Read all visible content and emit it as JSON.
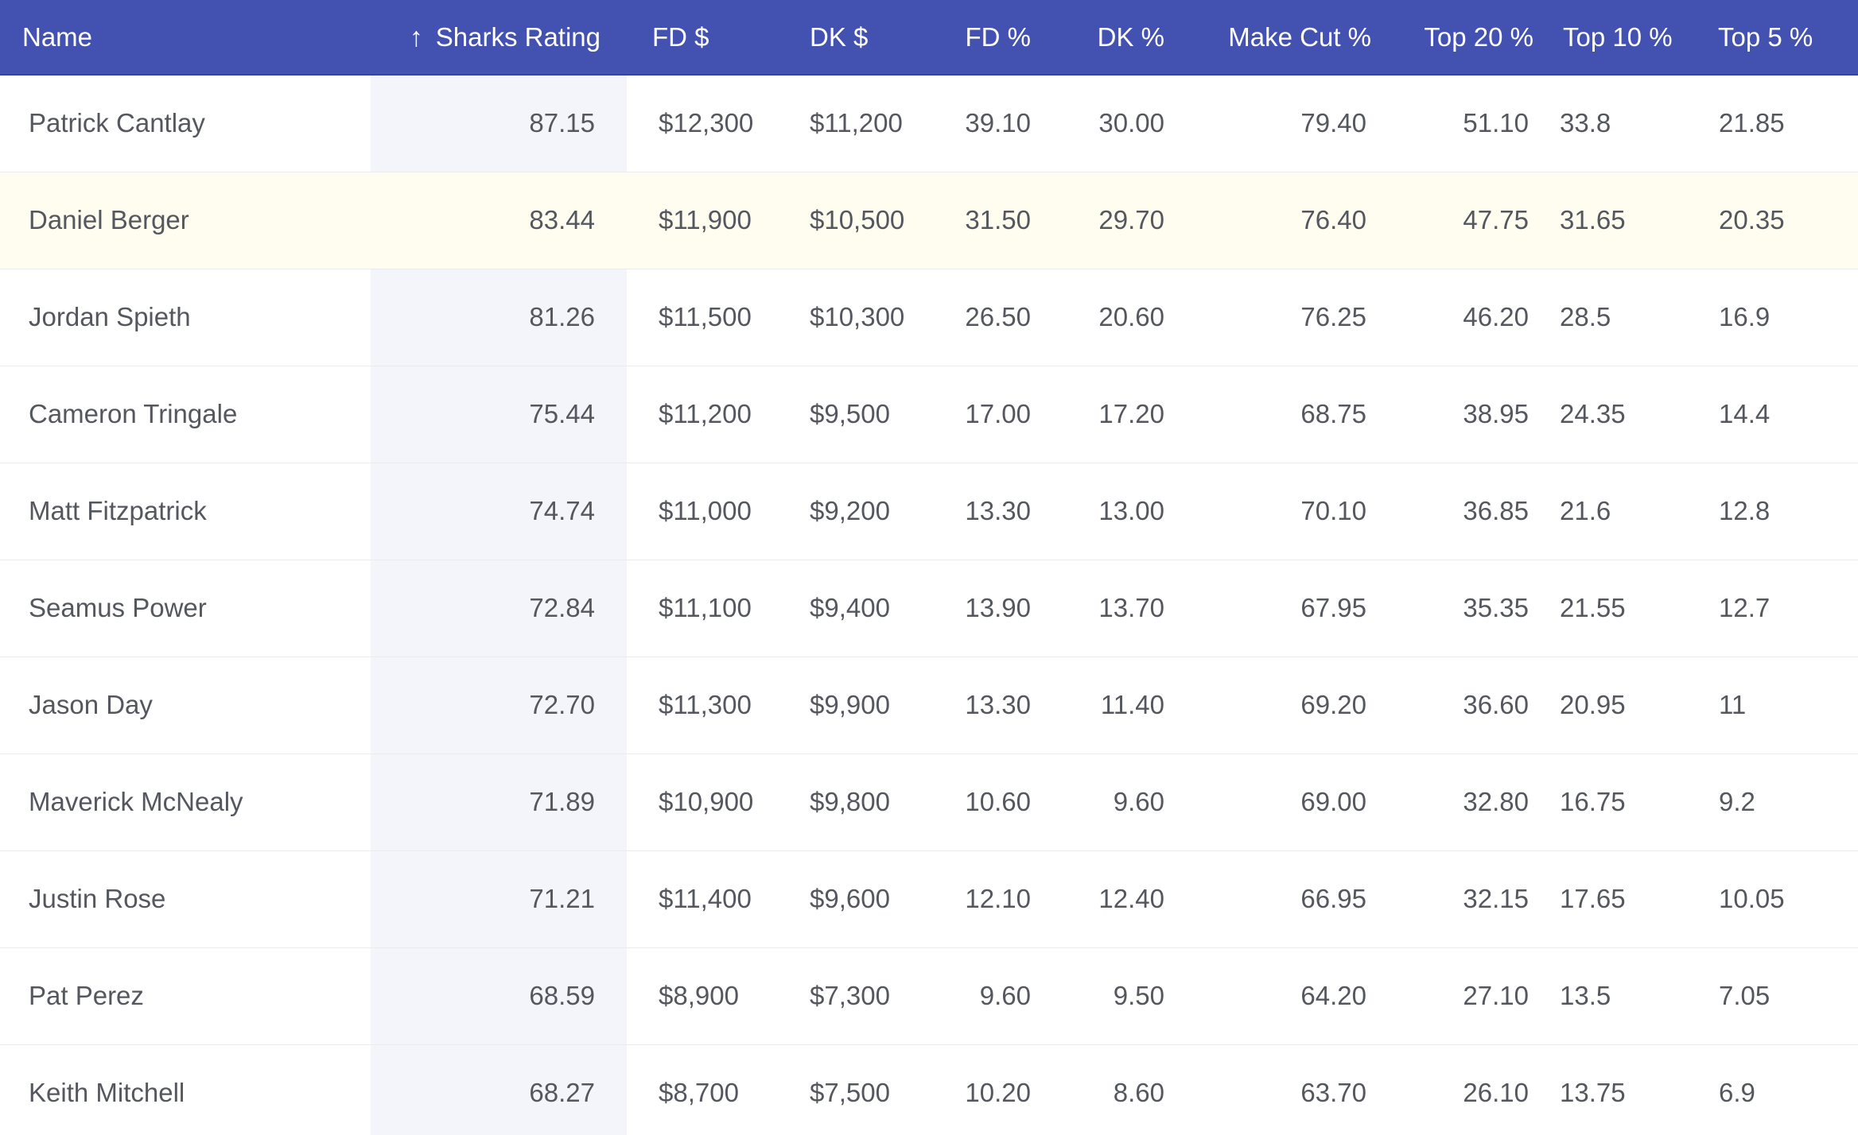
{
  "columns": [
    {
      "key": "name",
      "label": "Name"
    },
    {
      "key": "rating",
      "label": "Sharks Rating",
      "sort_icon": "↑"
    },
    {
      "key": "fd_salary",
      "label": "FD $"
    },
    {
      "key": "dk_salary",
      "label": "DK $"
    },
    {
      "key": "fd_pct",
      "label": "FD %"
    },
    {
      "key": "dk_pct",
      "label": "DK %"
    },
    {
      "key": "make_cut",
      "label": "Make Cut %"
    },
    {
      "key": "top20",
      "label": "Top 20 %"
    },
    {
      "key": "top10",
      "label": "Top 10 %"
    },
    {
      "key": "top5",
      "label": "Top 5 %"
    }
  ],
  "rows": [
    [
      "Patrick Cantlay",
      "87.15",
      "$12,300",
      "$11,200",
      "39.10",
      "30.00",
      "79.40",
      "51.10",
      "33.8",
      "21.85"
    ],
    [
      "Daniel Berger",
      "83.44",
      "$11,900",
      "$10,500",
      "31.50",
      "29.70",
      "76.40",
      "47.75",
      "31.65",
      "20.35"
    ],
    [
      "Jordan Spieth",
      "81.26",
      "$11,500",
      "$10,300",
      "26.50",
      "20.60",
      "76.25",
      "46.20",
      "28.5",
      "16.9"
    ],
    [
      "Cameron Tringale",
      "75.44",
      "$11,200",
      "$9,500",
      "17.00",
      "17.20",
      "68.75",
      "38.95",
      "24.35",
      "14.4"
    ],
    [
      "Matt Fitzpatrick",
      "74.74",
      "$11,000",
      "$9,200",
      "13.30",
      "13.00",
      "70.10",
      "36.85",
      "21.6",
      "12.8"
    ],
    [
      "Seamus Power",
      "72.84",
      "$11,100",
      "$9,400",
      "13.90",
      "13.70",
      "67.95",
      "35.35",
      "21.55",
      "12.7"
    ],
    [
      "Jason Day",
      "72.70",
      "$11,300",
      "$9,900",
      "13.30",
      "11.40",
      "69.20",
      "36.60",
      "20.95",
      "11"
    ],
    [
      "Maverick McNealy",
      "71.89",
      "$10,900",
      "$9,800",
      "10.60",
      "9.60",
      "69.00",
      "32.80",
      "16.75",
      "9.2"
    ],
    [
      "Justin Rose",
      "71.21",
      "$11,400",
      "$9,600",
      "12.10",
      "12.40",
      "66.95",
      "32.15",
      "17.65",
      "10.05"
    ],
    [
      "Pat Perez",
      "68.59",
      "$8,900",
      "$7,300",
      "9.60",
      "9.50",
      "64.20",
      "27.10",
      "13.5",
      "7.05"
    ],
    [
      "Keith Mitchell",
      "68.27",
      "$8,700",
      "$7,500",
      "10.20",
      "8.60",
      "63.70",
      "26.10",
      "13.75",
      "6.9"
    ]
  ],
  "highlight_row": 1,
  "colors": {
    "header_bg": "#4351b1",
    "sorted_col_bg": "#f4f5fa",
    "highlight_bg": "#fffcf0"
  }
}
